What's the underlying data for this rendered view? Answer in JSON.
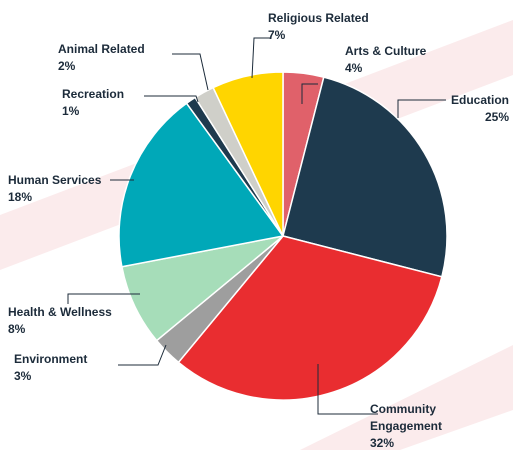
{
  "chart_data": {
    "type": "pie",
    "title": "",
    "start_angle_deg": 0,
    "direction": "clockwise",
    "slices": [
      {
        "label": "Arts & Culture",
        "value": 4,
        "value_label": "4%",
        "color": "#E0616A"
      },
      {
        "label": "Education",
        "value": 25,
        "value_label": "25%",
        "color": "#1E3A4E"
      },
      {
        "label": "Community Engagement",
        "value": 32,
        "value_label": "32%",
        "color": "#E92D30"
      },
      {
        "label": "Environment",
        "value": 3,
        "value_label": "3%",
        "color": "#9E9E9E"
      },
      {
        "label": "Health & Wellness",
        "value": 8,
        "value_label": "8%",
        "color": "#A6DDB9"
      },
      {
        "label": "Human Services",
        "value": 18,
        "value_label": "18%",
        "color": "#00A8B8"
      },
      {
        "label": "Recreation",
        "value": 1,
        "value_label": "1%",
        "color": "#1E3A4E"
      },
      {
        "label": "Animal Related",
        "value": 2,
        "value_label": "2%",
        "color": "#CFCFC9"
      },
      {
        "label": "Religious Related",
        "value": 7,
        "value_label": "7%",
        "color": "#FFD500"
      }
    ],
    "background_colors": {
      "page": "#ffffff",
      "accent_stripe": "#FBEBEC"
    },
    "legend": "none"
  }
}
